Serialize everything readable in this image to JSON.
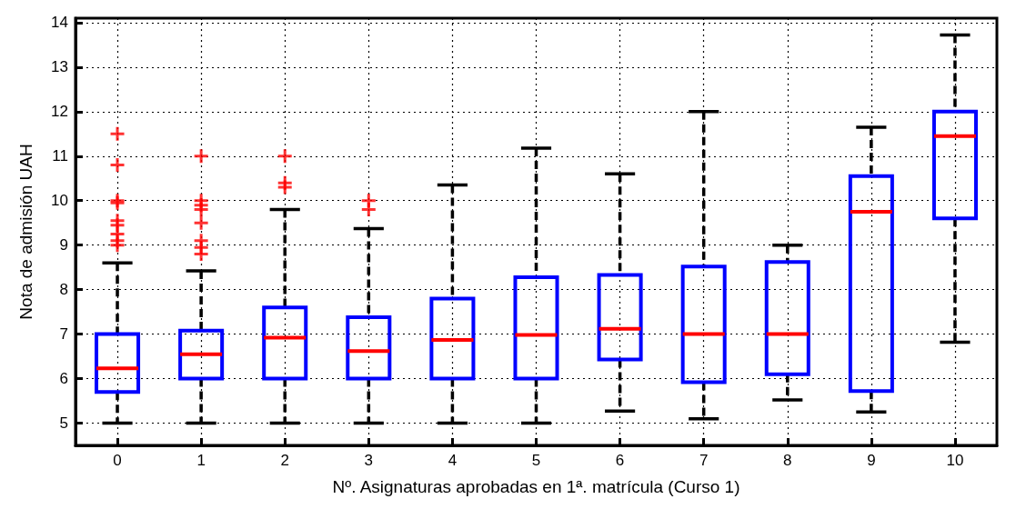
{
  "chart_data": {
    "type": "box",
    "xlabel": "Nº. Asignaturas aprobadas en 1ª. matrícula (Curso 1)",
    "ylabel": "Nota de admisión UAH",
    "x": [
      0,
      1,
      2,
      3,
      4,
      5,
      6,
      7,
      8,
      9,
      10
    ],
    "xlim": [
      -0.5,
      10.5
    ],
    "xticks": [
      0,
      1,
      2,
      3,
      4,
      5,
      6,
      7,
      8,
      9,
      10
    ],
    "ylim": [
      4.5,
      14.1
    ],
    "yticks": [
      5,
      6,
      7,
      8,
      9,
      10,
      11,
      12,
      13,
      14
    ],
    "grid": true,
    "color": "#0000ff",
    "boxes": [
      {
        "low": 5,
        "q1": 5.7,
        "median": 6.23,
        "q3": 7.0,
        "high": 8.6,
        "outliers": [
          9.0,
          9.1,
          9.25,
          9.45,
          9.55,
          9.95,
          10.0,
          10.8,
          11.5
        ]
      },
      {
        "low": 5,
        "q1": 6.0,
        "median": 6.55,
        "q3": 7.08,
        "high": 8.42,
        "outliers": [
          8.8,
          8.95,
          9.1,
          9.5,
          9.8,
          9.9,
          10.0,
          11.0
        ]
      },
      {
        "low": 5,
        "q1": 6.0,
        "median": 6.92,
        "q3": 7.6,
        "high": 9.8,
        "outliers": [
          10.3,
          10.4,
          11.0
        ]
      },
      {
        "low": 5,
        "q1": 6.0,
        "median": 6.62,
        "q3": 7.38,
        "high": 9.37,
        "outliers": [
          9.8,
          10.0
        ]
      },
      {
        "low": 5,
        "q1": 6.0,
        "median": 6.87,
        "q3": 7.8,
        "high": 10.35
      },
      {
        "low": 5,
        "q1": 6.0,
        "median": 6.98,
        "q3": 8.28,
        "high": 11.18
      },
      {
        "low": 5.27,
        "q1": 6.43,
        "median": 7.12,
        "q3": 8.33,
        "high": 10.6
      },
      {
        "low": 5.1,
        "q1": 5.92,
        "median": 7.0,
        "q3": 8.52,
        "high": 12.0
      },
      {
        "low": 5.52,
        "q1": 6.1,
        "median": 7.0,
        "q3": 8.62,
        "high": 9.0
      },
      {
        "low": 5.25,
        "q1": 5.72,
        "median": 9.75,
        "q3": 10.55,
        "high": 11.65
      },
      {
        "low": 6.82,
        "q1": 9.6,
        "median": 11.45,
        "q3": 12.0,
        "high": 13.72
      }
    ]
  }
}
